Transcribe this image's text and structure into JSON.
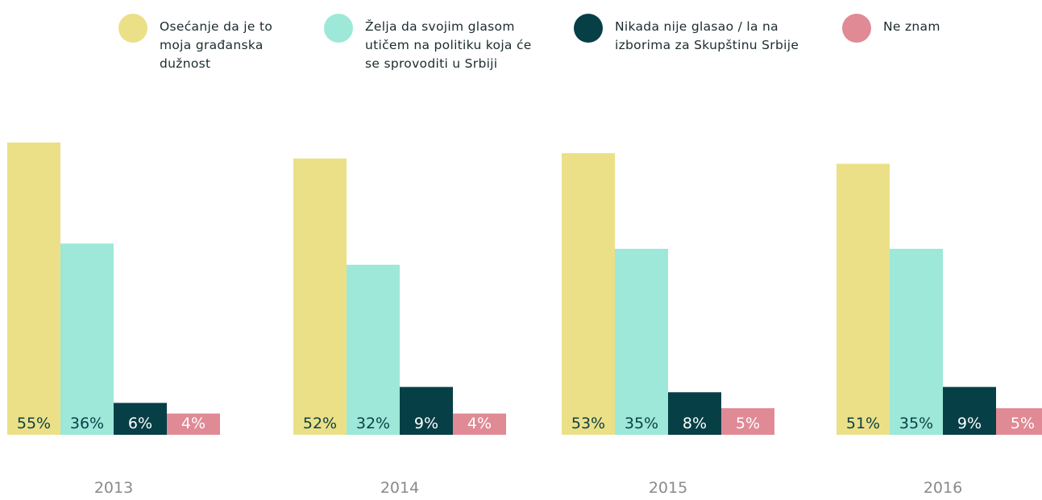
{
  "chart_data": {
    "type": "bar",
    "categories": [
      "2013",
      "2014",
      "2015",
      "2016"
    ],
    "series": [
      {
        "name": "Osećanje da je to moja građanska dužnost",
        "color": "#ebe087",
        "values": [
          55,
          52,
          53,
          51
        ],
        "value_labels": [
          "55%",
          "52%",
          "53%",
          "51%"
        ]
      },
      {
        "name": "Želja da svojim glasom utičem na politiku koja će se sprovoditi u Srbiji",
        "color": "#9de8d9",
        "values": [
          36,
          32,
          35,
          35
        ],
        "value_labels": [
          "36%",
          "32%",
          "35%",
          "35%"
        ]
      },
      {
        "name": "Nikada nije glasao / la na izborima za Skupštinu Srbije",
        "color": "#073f46",
        "values": [
          6,
          9,
          8,
          9
        ],
        "value_labels": [
          "6%",
          "9%",
          "8%",
          "9%"
        ]
      },
      {
        "name": "Ne znam",
        "color": "#e08a96",
        "values": [
          4,
          4,
          5,
          5
        ],
        "value_labels": [
          "4%",
          "4%",
          "5%",
          "5%"
        ]
      }
    ]
  }
}
